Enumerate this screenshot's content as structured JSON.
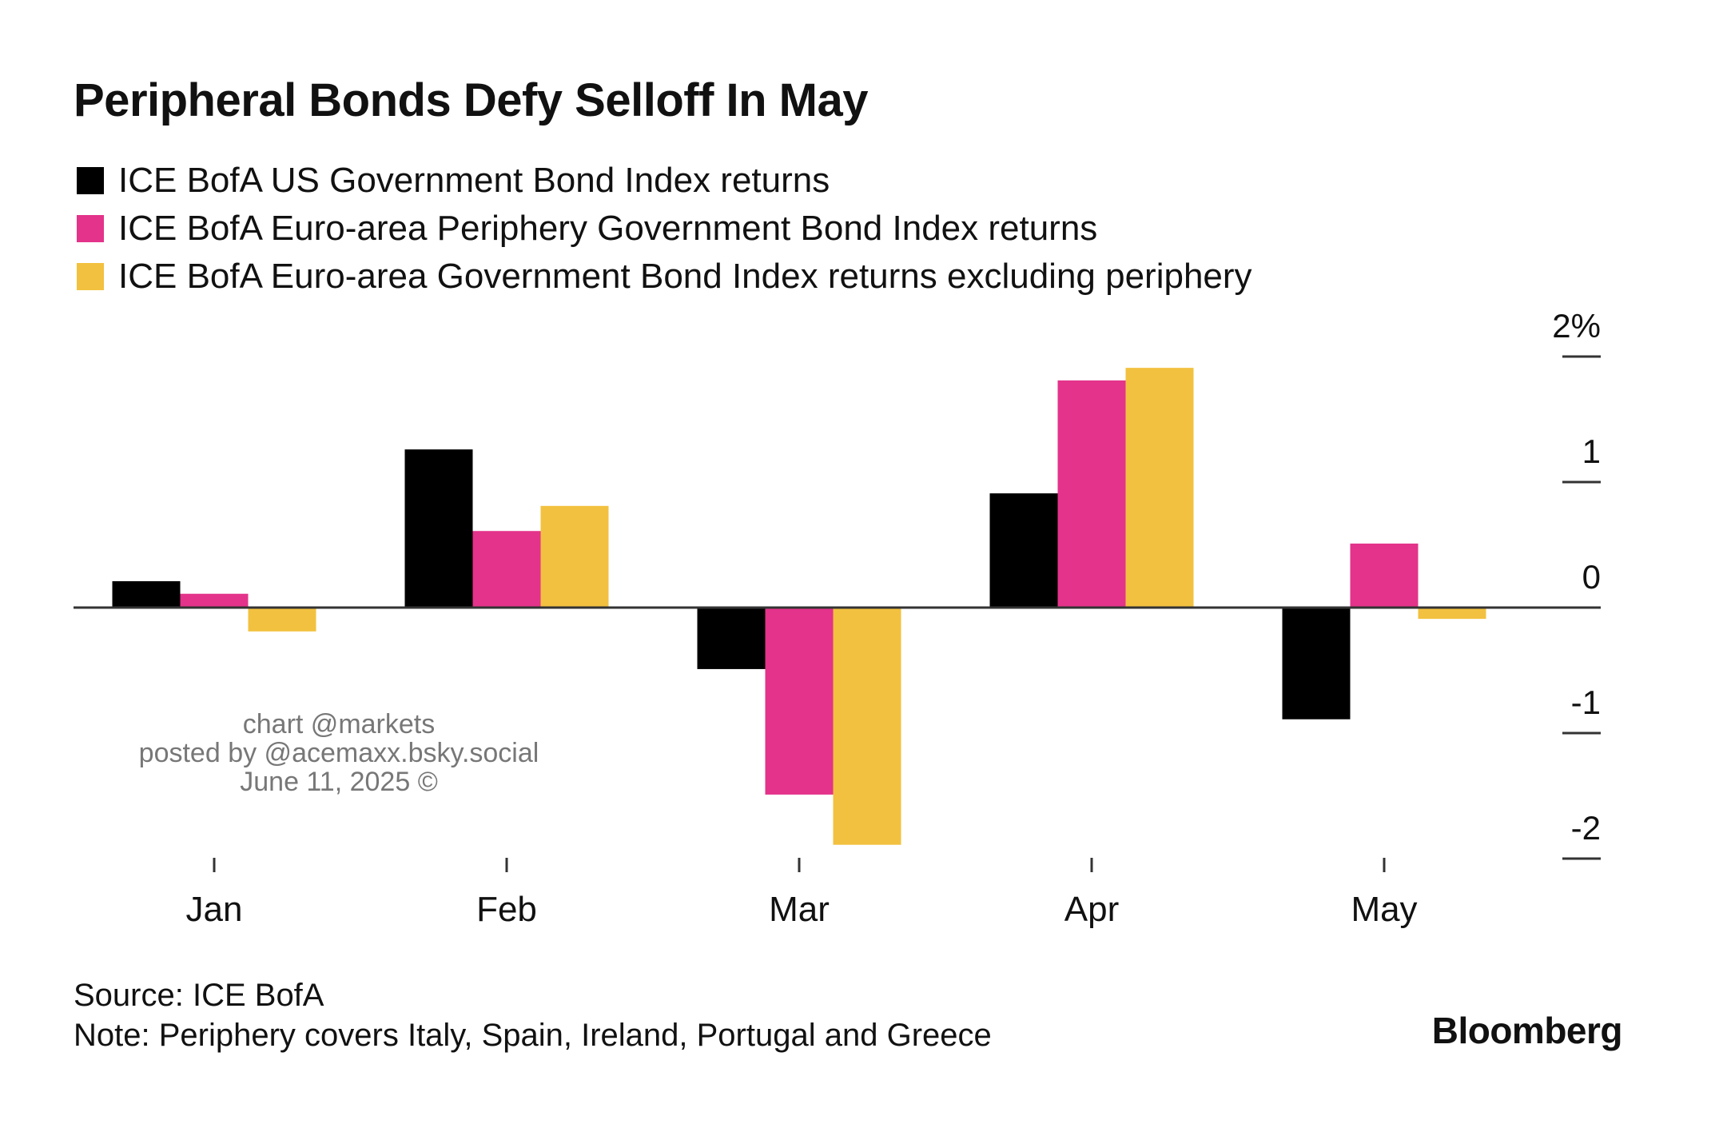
{
  "colors": {
    "us": "#000000",
    "periphery": "#e3338a",
    "core": "#f2c13f",
    "axis": "#333333"
  },
  "chart_data": {
    "type": "bar",
    "title": "Peripheral Bonds Defy Selloff In May",
    "categories": [
      "Jan",
      "Feb",
      "Mar",
      "Apr",
      "May"
    ],
    "series": [
      {
        "name": "ICE BofA US Government Bond Index returns",
        "values": [
          0.21,
          1.26,
          -0.49,
          0.91,
          -0.89
        ]
      },
      {
        "name": "ICE BofA Euro-area Periphery Government Bond Index returns",
        "values": [
          0.11,
          0.61,
          -1.49,
          1.81,
          0.51
        ]
      },
      {
        "name": "ICE BofA Euro-area Government Bond Index returns excluding periphery",
        "values": [
          -0.19,
          0.81,
          -1.89,
          1.91,
          -0.09
        ]
      }
    ],
    "ylim": [
      -2,
      2
    ],
    "yticks": [
      {
        "value": 2,
        "label": "2%"
      },
      {
        "value": 1,
        "label": "1"
      },
      {
        "value": 0,
        "label": "0"
      },
      {
        "value": -1,
        "label": "-1"
      },
      {
        "value": -2,
        "label": "-2"
      }
    ],
    "legend_position": "top-left",
    "grid": false
  },
  "watermark": {
    "line1": "chart @markets",
    "line2": "posted by @acemaxx.bsky.social",
    "line3": "June 11, 2025 ©"
  },
  "footer": {
    "source": "Source: ICE BofA",
    "note": "Note: Periphery covers Italy, Spain, Ireland, Portugal and Greece",
    "brand": "Bloomberg"
  }
}
